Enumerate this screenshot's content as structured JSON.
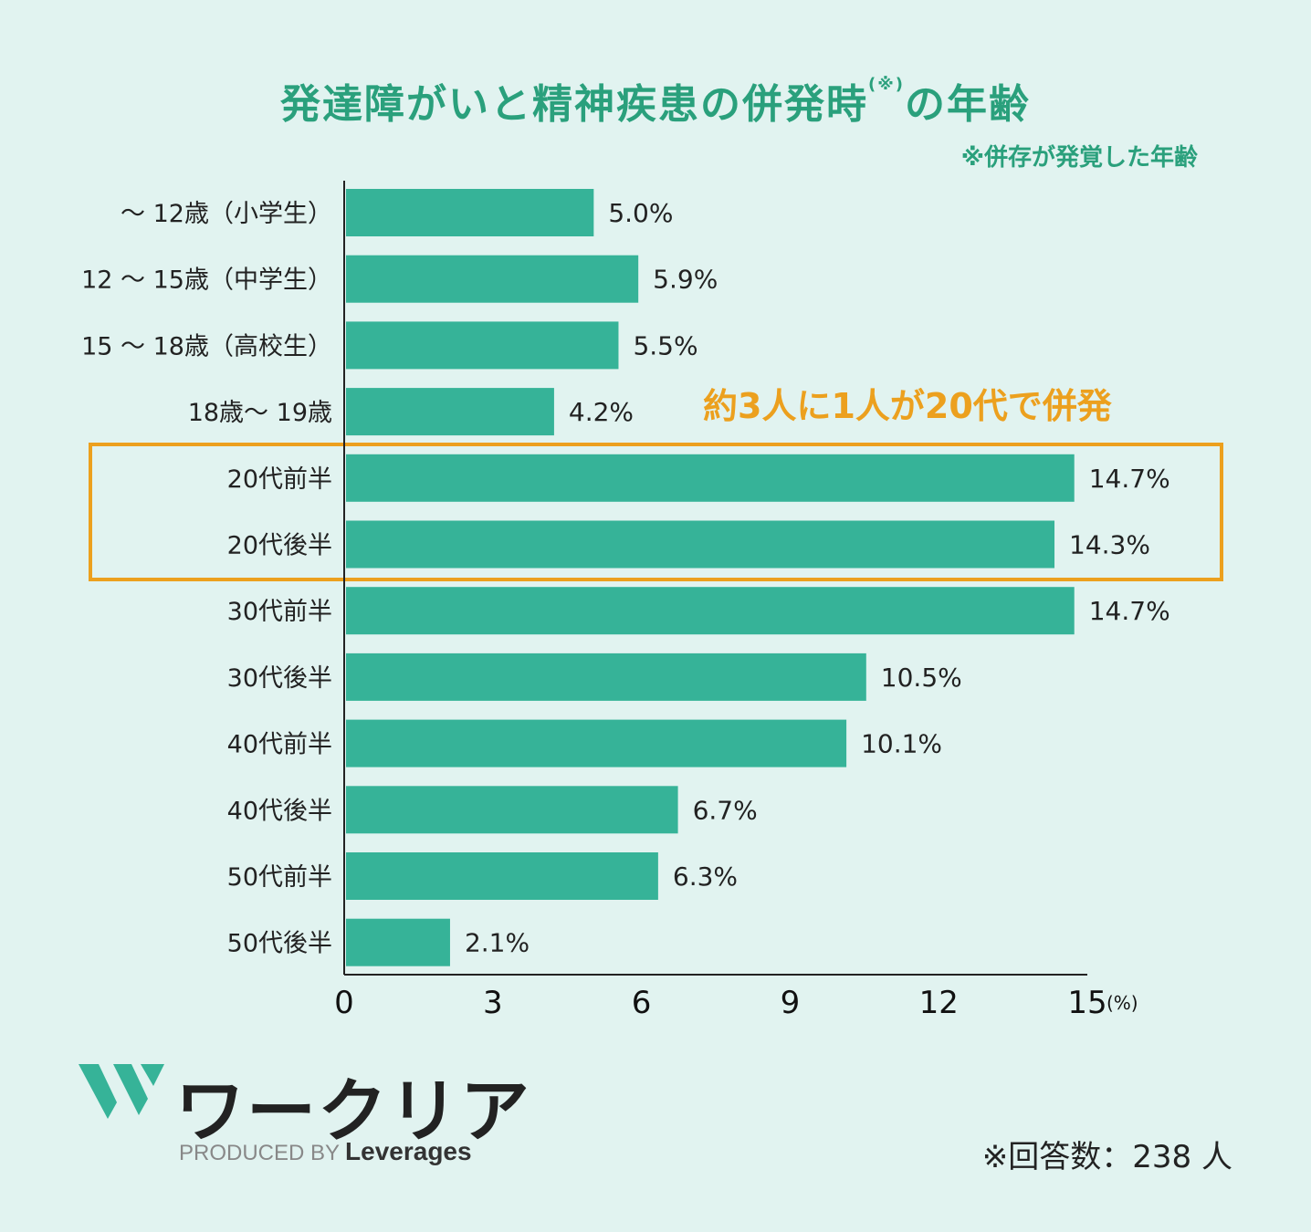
{
  "chart_data": {
    "type": "bar",
    "orientation": "horizontal",
    "title": "発達障がいと精神疾患の併発時",
    "title_note_mark": "(※)",
    "title_suffix": "の年齢",
    "footnote": "※併存が発覚した年齢",
    "categories": [
      "〜 12歳（小学生）",
      "12 〜 15歳（中学生）",
      "15 〜 18歳（高校生）",
      "18歳〜 19歳",
      "20代前半",
      "20代後半",
      "30代前半",
      "30代後半",
      "40代前半",
      "40代後半",
      "50代前半",
      "50代後半"
    ],
    "values": [
      5.0,
      5.9,
      5.5,
      4.2,
      14.7,
      14.3,
      14.7,
      10.5,
      10.1,
      6.7,
      6.3,
      2.1
    ],
    "value_labels": [
      "5.0%",
      "5.9%",
      "5.5%",
      "4.2%",
      "14.7%",
      "14.3%",
      "14.7%",
      "10.5%",
      "10.1%",
      "6.7%",
      "6.3%",
      "2.1%"
    ],
    "xlim": [
      0,
      15
    ],
    "xticks": [
      "0",
      "3",
      "6",
      "9",
      "12",
      "15"
    ],
    "x_unit": "(%)",
    "highlight": {
      "categories": [
        "20代前半",
        "20代後半"
      ],
      "label": "約3人に1人が20代で併発"
    },
    "sample_note": "※回答数：238 人",
    "colors": {
      "bar": "#36b398",
      "highlight": "#eca01e",
      "title": "#2aa07c",
      "background": "#e1f3f0"
    }
  },
  "brand": {
    "logo_text": "ワークリア",
    "produced_by": "PRODUCED BY",
    "company": "Leverages"
  }
}
